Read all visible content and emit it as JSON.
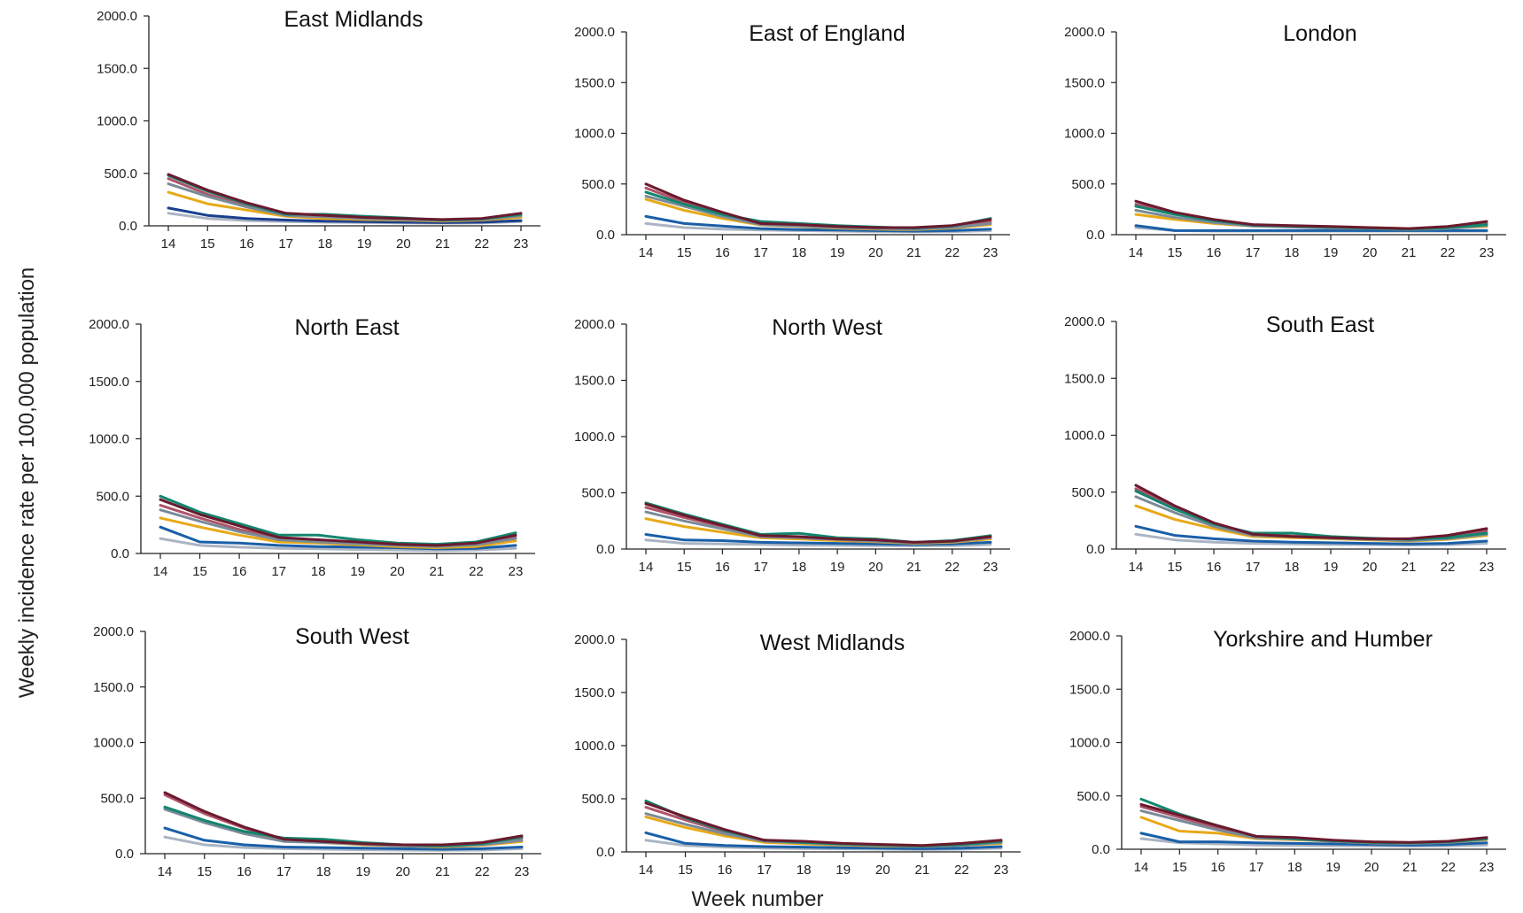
{
  "figure": {
    "ylabel": "Weekly incidence rate per 100,000 population",
    "xlabel": "Week number"
  },
  "chart_data": [
    {
      "type": "line",
      "title": "East Midlands",
      "x": [
        14,
        15,
        16,
        17,
        18,
        19,
        20,
        21,
        22,
        23
      ],
      "ylim": [
        0,
        2000
      ],
      "yticks": [
        "0.0",
        "500.0",
        "1000.0",
        "1500.0",
        "2000.0"
      ],
      "series": [
        {
          "color": "#6b1a2e",
          "values": [
            490,
            340,
            220,
            120,
            100,
            80,
            70,
            60,
            70,
            120
          ]
        },
        {
          "color": "#12866e",
          "values": [
            480,
            330,
            210,
            110,
            110,
            90,
            75,
            55,
            65,
            110
          ]
        },
        {
          "color": "#7a8a98",
          "values": [
            400,
            280,
            180,
            100,
            85,
            70,
            60,
            50,
            60,
            95
          ]
        },
        {
          "color": "#b0546a",
          "values": [
            450,
            300,
            190,
            105,
            90,
            75,
            65,
            55,
            65,
            100
          ]
        },
        {
          "color": "#e8a917",
          "values": [
            320,
            210,
            150,
            90,
            70,
            60,
            55,
            45,
            55,
            80
          ]
        },
        {
          "color": "#1a3f8f",
          "values": [
            170,
            100,
            70,
            55,
            45,
            40,
            35,
            30,
            35,
            50
          ]
        },
        {
          "color": "#aab4c2",
          "values": [
            120,
            70,
            50,
            40,
            35,
            30,
            28,
            25,
            28,
            40
          ]
        }
      ]
    },
    {
      "type": "line",
      "title": "East of England",
      "x": [
        14,
        15,
        16,
        17,
        18,
        19,
        20,
        21,
        22,
        23
      ],
      "ylim": [
        0,
        2000
      ],
      "yticks": [
        "0.0",
        "500.0",
        "1000.0",
        "1500.0",
        "2000.0"
      ],
      "series": [
        {
          "color": "#6b1a2e",
          "values": [
            500,
            340,
            220,
            110,
            100,
            80,
            70,
            70,
            90,
            150
          ]
        },
        {
          "color": "#12866e",
          "values": [
            420,
            300,
            200,
            130,
            110,
            90,
            75,
            65,
            85,
            160
          ]
        },
        {
          "color": "#7a8a98",
          "values": [
            380,
            280,
            180,
            100,
            85,
            70,
            60,
            55,
            70,
            110
          ]
        },
        {
          "color": "#b0546a",
          "values": [
            460,
            320,
            200,
            110,
            95,
            75,
            65,
            60,
            80,
            130
          ]
        },
        {
          "color": "#e8a917",
          "values": [
            350,
            240,
            160,
            95,
            80,
            65,
            55,
            50,
            65,
            100
          ]
        },
        {
          "color": "#1a5fa8",
          "values": [
            180,
            110,
            85,
            60,
            50,
            45,
            40,
            35,
            40,
            55
          ]
        },
        {
          "color": "#aab4c2",
          "values": [
            110,
            70,
            55,
            45,
            40,
            35,
            30,
            28,
            30,
            40
          ]
        }
      ]
    },
    {
      "type": "line",
      "title": "London",
      "x": [
        14,
        15,
        16,
        17,
        18,
        19,
        20,
        21,
        22,
        23
      ],
      "ylim": [
        0,
        2000
      ],
      "yticks": [
        "0.0",
        "500.0",
        "1000.0",
        "1500.0",
        "2000.0"
      ],
      "series": [
        {
          "color": "#6b1a2e",
          "values": [
            330,
            220,
            150,
            100,
            90,
            80,
            70,
            60,
            80,
            130
          ]
        },
        {
          "color": "#12866e",
          "values": [
            280,
            200,
            140,
            95,
            85,
            75,
            65,
            55,
            70,
            100
          ]
        },
        {
          "color": "#7a8a98",
          "values": [
            240,
            170,
            120,
            85,
            75,
            65,
            60,
            50,
            60,
            90
          ]
        },
        {
          "color": "#b0546a",
          "values": [
            300,
            210,
            140,
            95,
            85,
            75,
            65,
            55,
            70,
            110
          ]
        },
        {
          "color": "#e8a917",
          "values": [
            200,
            150,
            110,
            85,
            80,
            75,
            70,
            60,
            65,
            80
          ]
        },
        {
          "color": "#1a5fa8",
          "values": [
            90,
            40,
            40,
            40,
            40,
            40,
            40,
            40,
            40,
            40
          ]
        },
        {
          "color": "#aab4c2",
          "values": [
            70,
            40,
            35,
            35,
            35,
            35,
            35,
            35,
            35,
            35
          ]
        }
      ]
    },
    {
      "type": "line",
      "title": "North East",
      "x": [
        14,
        15,
        16,
        17,
        18,
        19,
        20,
        21,
        22,
        23
      ],
      "ylim": [
        0,
        2000
      ],
      "yticks": [
        "0.0",
        "500.0",
        "1000.0",
        "1500.0",
        "2000.0"
      ],
      "series": [
        {
          "color": "#6b1a2e",
          "values": [
            470,
            340,
            240,
            140,
            120,
            100,
            80,
            70,
            90,
            160
          ]
        },
        {
          "color": "#12866e",
          "values": [
            500,
            360,
            260,
            160,
            160,
            120,
            90,
            80,
            100,
            180
          ]
        },
        {
          "color": "#7a8a98",
          "values": [
            380,
            280,
            190,
            120,
            100,
            85,
            70,
            60,
            75,
            130
          ]
        },
        {
          "color": "#b0546a",
          "values": [
            420,
            310,
            210,
            130,
            110,
            90,
            75,
            65,
            80,
            140
          ]
        },
        {
          "color": "#e8a917",
          "values": [
            310,
            230,
            160,
            100,
            90,
            75,
            60,
            50,
            60,
            110
          ]
        },
        {
          "color": "#1a5fa8",
          "values": [
            230,
            100,
            90,
            70,
            60,
            55,
            50,
            40,
            45,
            70
          ]
        },
        {
          "color": "#aab4c2",
          "values": [
            130,
            70,
            55,
            45,
            40,
            35,
            30,
            25,
            30,
            45
          ]
        }
      ]
    },
    {
      "type": "line",
      "title": "North West",
      "x": [
        14,
        15,
        16,
        17,
        18,
        19,
        20,
        21,
        22,
        23
      ],
      "ylim": [
        0,
        2000
      ],
      "yticks": [
        "0.0",
        "500.0",
        "1000.0",
        "1500.0",
        "2000.0"
      ],
      "series": [
        {
          "color": "#6b1a2e",
          "values": [
            400,
            300,
            210,
            120,
            110,
            90,
            80,
            60,
            70,
            110
          ]
        },
        {
          "color": "#12866e",
          "values": [
            410,
            310,
            220,
            130,
            140,
            100,
            90,
            60,
            75,
            120
          ]
        },
        {
          "color": "#7a8a98",
          "values": [
            330,
            250,
            180,
            110,
            100,
            85,
            70,
            55,
            65,
            100
          ]
        },
        {
          "color": "#b0546a",
          "values": [
            370,
            280,
            200,
            115,
            105,
            90,
            75,
            55,
            70,
            105
          ]
        },
        {
          "color": "#e8a917",
          "values": [
            270,
            200,
            150,
            100,
            90,
            75,
            65,
            50,
            60,
            90
          ]
        },
        {
          "color": "#1a5fa8",
          "values": [
            130,
            80,
            75,
            60,
            55,
            50,
            45,
            40,
            45,
            60
          ]
        },
        {
          "color": "#aab4c2",
          "values": [
            80,
            50,
            45,
            40,
            35,
            32,
            30,
            28,
            30,
            40
          ]
        }
      ]
    },
    {
      "type": "line",
      "title": "South East",
      "x": [
        14,
        15,
        16,
        17,
        18,
        19,
        20,
        21,
        22,
        23
      ],
      "ylim": [
        0,
        2000
      ],
      "yticks": [
        "0.0",
        "500.0",
        "1000.0",
        "1500.0",
        "2000.0"
      ],
      "series": [
        {
          "color": "#6b1a2e",
          "values": [
            560,
            380,
            230,
            130,
            110,
            100,
            90,
            90,
            120,
            180
          ]
        },
        {
          "color": "#12866e",
          "values": [
            510,
            350,
            220,
            140,
            140,
            110,
            95,
            85,
            100,
            140
          ]
        },
        {
          "color": "#7a8a98",
          "values": [
            460,
            320,
            200,
            120,
            110,
            95,
            85,
            75,
            90,
            130
          ]
        },
        {
          "color": "#b0546a",
          "values": [
            530,
            370,
            225,
            130,
            115,
            100,
            90,
            85,
            110,
            160
          ]
        },
        {
          "color": "#e8a917",
          "values": [
            380,
            260,
            180,
            110,
            100,
            90,
            80,
            70,
            85,
            120
          ]
        },
        {
          "color": "#1a5fa8",
          "values": [
            200,
            120,
            90,
            70,
            60,
            55,
            50,
            45,
            50,
            70
          ]
        },
        {
          "color": "#aab4c2",
          "values": [
            130,
            80,
            60,
            50,
            45,
            40,
            38,
            35,
            38,
            50
          ]
        }
      ]
    },
    {
      "type": "line",
      "title": "South West",
      "x": [
        14,
        15,
        16,
        17,
        18,
        19,
        20,
        21,
        22,
        23
      ],
      "ylim": [
        0,
        2000
      ],
      "yticks": [
        "0.0",
        "500.0",
        "1000.0",
        "1500.0",
        "2000.0"
      ],
      "series": [
        {
          "color": "#6b1a2e",
          "values": [
            550,
            380,
            240,
            130,
            110,
            90,
            80,
            80,
            100,
            160
          ]
        },
        {
          "color": "#12866e",
          "values": [
            420,
            300,
            200,
            140,
            130,
            100,
            80,
            70,
            90,
            150
          ]
        },
        {
          "color": "#7a8a98",
          "values": [
            400,
            280,
            180,
            110,
            100,
            85,
            70,
            65,
            80,
            120
          ]
        },
        {
          "color": "#b0546a",
          "values": [
            530,
            360,
            230,
            125,
            105,
            88,
            78,
            75,
            95,
            140
          ]
        },
        {
          "color": "#e8a917",
          "values": [
            410,
            280,
            190,
            120,
            100,
            80,
            70,
            60,
            75,
            110
          ]
        },
        {
          "color": "#1a5fa8",
          "values": [
            230,
            120,
            80,
            60,
            55,
            50,
            45,
            40,
            45,
            60
          ]
        },
        {
          "color": "#aab4c2",
          "values": [
            150,
            80,
            55,
            45,
            40,
            35,
            32,
            30,
            32,
            45
          ]
        }
      ]
    },
    {
      "type": "line",
      "title": "West Midlands",
      "x": [
        14,
        15,
        16,
        17,
        18,
        19,
        20,
        21,
        22,
        23
      ],
      "ylim": [
        0,
        2000
      ],
      "yticks": [
        "0.0",
        "500.0",
        "1000.0",
        "1500.0",
        "2000.0"
      ],
      "series": [
        {
          "color": "#6b1a2e",
          "values": [
            460,
            330,
            210,
            110,
            100,
            80,
            70,
            60,
            80,
            110
          ]
        },
        {
          "color": "#12866e",
          "values": [
            480,
            320,
            200,
            110,
            90,
            75,
            65,
            55,
            70,
            100
          ]
        },
        {
          "color": "#7a8a98",
          "values": [
            360,
            260,
            170,
            100,
            85,
            70,
            60,
            50,
            60,
            90
          ]
        },
        {
          "color": "#b0546a",
          "values": [
            420,
            300,
            190,
            105,
            90,
            75,
            65,
            55,
            70,
            100
          ]
        },
        {
          "color": "#e8a917",
          "values": [
            330,
            230,
            150,
            90,
            75,
            65,
            55,
            50,
            60,
            80
          ]
        },
        {
          "color": "#1a5fa8",
          "values": [
            180,
            80,
            60,
            50,
            45,
            40,
            35,
            30,
            35,
            50
          ]
        },
        {
          "color": "#aab4c2",
          "values": [
            110,
            60,
            45,
            35,
            30,
            28,
            25,
            22,
            25,
            35
          ]
        }
      ]
    },
    {
      "type": "line",
      "title": "Yorkshire and Humber",
      "x": [
        14,
        15,
        16,
        17,
        18,
        19,
        20,
        21,
        22,
        23
      ],
      "ylim": [
        0,
        2000
      ],
      "yticks": [
        "0.0",
        "500.0",
        "1000.0",
        "1500.0",
        "2000.0"
      ],
      "series": [
        {
          "color": "#6b1a2e",
          "values": [
            420,
            320,
            220,
            120,
            110,
            85,
            70,
            65,
            75,
            110
          ]
        },
        {
          "color": "#12866e",
          "values": [
            470,
            330,
            220,
            120,
            100,
            80,
            65,
            60,
            70,
            100
          ]
        },
        {
          "color": "#7a8a98",
          "values": [
            360,
            270,
            180,
            105,
            95,
            75,
            62,
            55,
            65,
            95
          ]
        },
        {
          "color": "#b0546a",
          "values": [
            400,
            300,
            200,
            115,
            105,
            80,
            68,
            60,
            70,
            105
          ]
        },
        {
          "color": "#e8a917",
          "values": [
            300,
            170,
            150,
            100,
            90,
            75,
            60,
            55,
            65,
            90
          ]
        },
        {
          "color": "#1a5fa8",
          "values": [
            150,
            70,
            70,
            60,
            55,
            50,
            45,
            40,
            45,
            60
          ]
        },
        {
          "color": "#aab4c2",
          "values": [
            100,
            60,
            50,
            40,
            35,
            32,
            30,
            28,
            30,
            40
          ]
        }
      ]
    }
  ]
}
